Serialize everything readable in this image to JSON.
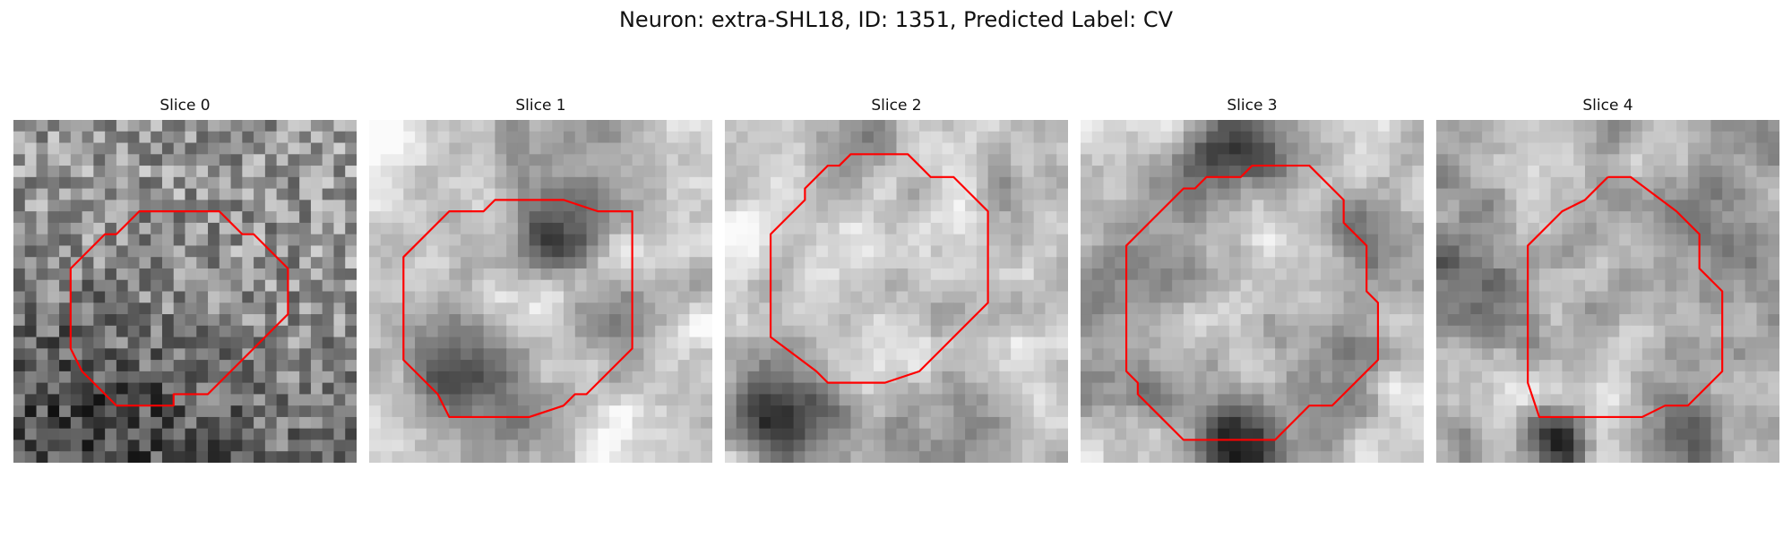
{
  "figure": {
    "title": "Neuron: extra-SHL18, ID: 1351, Predicted Label: CV"
  },
  "colors": {
    "background": "#ffffff",
    "contour": "#ff0000"
  },
  "panels": [
    {
      "title": "Slice 0",
      "contour": [
        [
          14,
          8
        ],
        [
          18,
          8
        ],
        [
          20,
          10
        ],
        [
          21,
          10
        ],
        [
          24,
          13
        ],
        [
          24,
          17
        ],
        [
          21,
          20
        ],
        [
          19,
          22
        ],
        [
          19,
          22
        ],
        [
          18,
          23
        ],
        [
          17,
          24
        ],
        [
          14,
          24
        ],
        [
          14,
          25
        ],
        [
          9,
          25
        ],
        [
          6,
          22
        ],
        [
          6,
          22
        ],
        [
          5,
          20
        ],
        [
          5,
          17
        ],
        [
          5,
          15
        ],
        [
          5,
          13
        ],
        [
          8,
          10
        ],
        [
          9,
          10
        ],
        [
          11,
          8
        ],
        [
          14,
          8
        ]
      ]
    },
    {
      "title": "Slice 1",
      "contour": [
        [
          12,
          7
        ],
        [
          17,
          7
        ],
        [
          20,
          8
        ],
        [
          23,
          8
        ],
        [
          23,
          10
        ],
        [
          23,
          20
        ],
        [
          19,
          24
        ],
        [
          18,
          24
        ],
        [
          17,
          25
        ],
        [
          14,
          26
        ],
        [
          10,
          26
        ],
        [
          7,
          26
        ],
        [
          6,
          24
        ],
        [
          3,
          21
        ],
        [
          3,
          15
        ],
        [
          3,
          12
        ],
        [
          7,
          8
        ],
        [
          10,
          8
        ],
        [
          11,
          7
        ],
        [
          12,
          7
        ]
      ]
    },
    {
      "title": "Slice 2",
      "contour": [
        [
          12,
          3
        ],
        [
          16,
          3
        ],
        [
          17,
          4
        ],
        [
          18,
          5
        ],
        [
          20,
          5
        ],
        [
          23,
          8
        ],
        [
          23,
          16
        ],
        [
          20,
          19
        ],
        [
          19,
          20
        ],
        [
          17,
          22
        ],
        [
          14,
          23
        ],
        [
          13,
          23
        ],
        [
          9,
          23
        ],
        [
          8,
          22
        ],
        [
          4,
          19
        ],
        [
          4,
          18
        ],
        [
          4,
          16
        ],
        [
          4,
          10
        ],
        [
          5,
          9
        ],
        [
          6,
          8
        ],
        [
          7,
          7
        ],
        [
          7,
          6
        ],
        [
          9,
          4
        ],
        [
          10,
          4
        ],
        [
          11,
          3
        ],
        [
          12,
          3
        ]
      ]
    },
    {
      "title": "Slice 3",
      "contour": [
        [
          17,
          4
        ],
        [
          20,
          4
        ],
        [
          23,
          7
        ],
        [
          23,
          9
        ],
        [
          24,
          10
        ],
        [
          25,
          11
        ],
        [
          25,
          15
        ],
        [
          26,
          16
        ],
        [
          26,
          21
        ],
        [
          23,
          24
        ],
        [
          22,
          25
        ],
        [
          20,
          25
        ],
        [
          17,
          28
        ],
        [
          15,
          28
        ],
        [
          9,
          28
        ],
        [
          7,
          26
        ],
        [
          5,
          24
        ],
        [
          5,
          23
        ],
        [
          4,
          22
        ],
        [
          4,
          20
        ],
        [
          4,
          19
        ],
        [
          4,
          11
        ],
        [
          6,
          9
        ],
        [
          7,
          8
        ],
        [
          8,
          7
        ],
        [
          9,
          6
        ],
        [
          10,
          6
        ],
        [
          11,
          5
        ],
        [
          14,
          5
        ],
        [
          15,
          4
        ],
        [
          17,
          4
        ]
      ]
    },
    {
      "title": "Slice 4",
      "contour": [
        [
          15,
          5
        ],
        [
          17,
          5
        ],
        [
          21,
          8
        ],
        [
          23,
          10
        ],
        [
          23,
          13
        ],
        [
          24,
          14
        ],
        [
          25,
          15
        ],
        [
          25,
          22
        ],
        [
          23,
          24
        ],
        [
          22,
          25
        ],
        [
          20,
          25
        ],
        [
          18,
          26
        ],
        [
          14,
          26
        ],
        [
          12,
          26
        ],
        [
          9,
          26
        ],
        [
          9,
          26
        ],
        [
          8,
          23
        ],
        [
          8,
          21
        ],
        [
          8,
          20
        ],
        [
          8,
          11
        ],
        [
          11,
          8
        ],
        [
          13,
          7
        ],
        [
          15,
          5
        ]
      ]
    }
  ]
}
